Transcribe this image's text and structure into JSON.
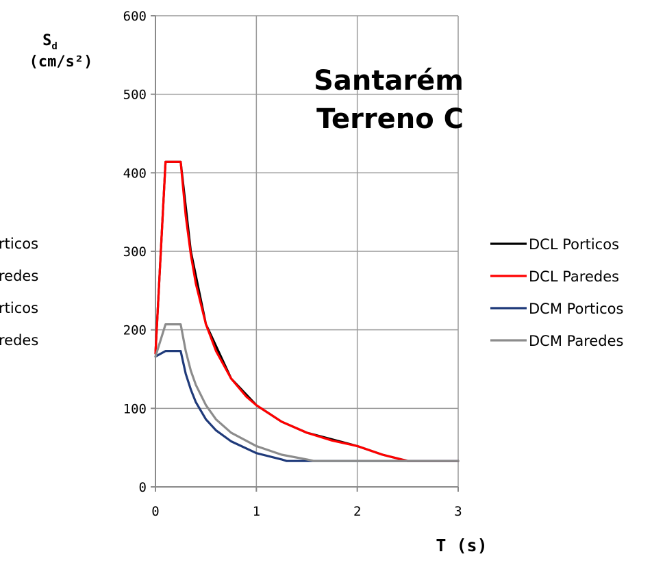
{
  "chart_data": {
    "type": "line",
    "title_lines": [
      "Santarém",
      "Terreno C"
    ],
    "ylabel_main": "S",
    "ylabel_sub": "d",
    "ylabel_unit": "(cm/s²)",
    "xlabel": "T (s)",
    "xlim": [
      0,
      3
    ],
    "ylim": [
      0,
      600
    ],
    "x_ticks": [
      0,
      1,
      2,
      3
    ],
    "y_ticks": [
      0,
      100,
      200,
      300,
      400,
      500,
      600
    ],
    "grid": true,
    "legend_position": "right",
    "left_legend_fragments": [
      "rticos",
      "redes",
      "rticos",
      "redes"
    ],
    "series": [
      {
        "name": "DCL Porticos",
        "color": "#000000",
        "points": [
          [
            0,
            170
          ],
          [
            0.1,
            414
          ],
          [
            0.25,
            414
          ],
          [
            0.35,
            300
          ],
          [
            0.5,
            207
          ],
          [
            0.75,
            138
          ],
          [
            1.0,
            104
          ],
          [
            1.25,
            83
          ],
          [
            1.5,
            69
          ],
          [
            2.0,
            52
          ],
          [
            2.25,
            41
          ],
          [
            2.5,
            33
          ],
          [
            3.0,
            33
          ]
        ]
      },
      {
        "name": "DCL Paredes",
        "color": "#ff0000",
        "points": [
          [
            0,
            170
          ],
          [
            0.1,
            414
          ],
          [
            0.25,
            414
          ],
          [
            0.3,
            345
          ],
          [
            0.35,
            296
          ],
          [
            0.4,
            259
          ],
          [
            0.5,
            207
          ],
          [
            0.6,
            173
          ],
          [
            0.75,
            138
          ],
          [
            0.9,
            115
          ],
          [
            1.0,
            104
          ],
          [
            1.25,
            83
          ],
          [
            1.5,
            69
          ],
          [
            1.75,
            59
          ],
          [
            2.0,
            52
          ],
          [
            2.25,
            41
          ],
          [
            2.5,
            33
          ],
          [
            3.0,
            33
          ]
        ]
      },
      {
        "name": "DCM Porticos",
        "color": "#1f3a7a",
        "points": [
          [
            0,
            166
          ],
          [
            0.1,
            173
          ],
          [
            0.25,
            173
          ],
          [
            0.3,
            144
          ],
          [
            0.35,
            124
          ],
          [
            0.4,
            108
          ],
          [
            0.5,
            86
          ],
          [
            0.6,
            72
          ],
          [
            0.75,
            58
          ],
          [
            1.0,
            43
          ],
          [
            1.25,
            35
          ],
          [
            1.3,
            33
          ],
          [
            3.0,
            33
          ]
        ]
      },
      {
        "name": "DCM Paredes",
        "color": "#8c8c8c",
        "points": [
          [
            0,
            166
          ],
          [
            0.1,
            207
          ],
          [
            0.25,
            207
          ],
          [
            0.3,
            173
          ],
          [
            0.35,
            148
          ],
          [
            0.4,
            130
          ],
          [
            0.5,
            104
          ],
          [
            0.6,
            86
          ],
          [
            0.75,
            69
          ],
          [
            1.0,
            52
          ],
          [
            1.25,
            41
          ],
          [
            1.5,
            35
          ],
          [
            1.57,
            33
          ],
          [
            3.0,
            33
          ]
        ]
      }
    ]
  }
}
